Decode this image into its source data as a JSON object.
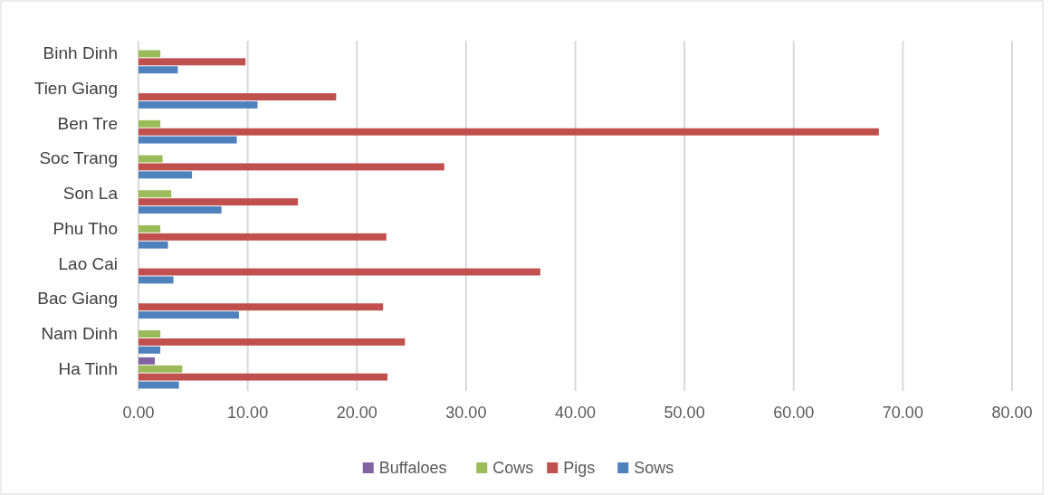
{
  "chart_data": {
    "type": "bar",
    "orientation": "horizontal",
    "categories": [
      "Binh Dinh",
      "Tien Giang",
      "Ben Tre",
      "Soc Trang",
      "Son La",
      "Phu Tho",
      "Lao Cai",
      "Bac Giang",
      "Nam Dinh",
      "Ha Tinh"
    ],
    "series": [
      {
        "name": "Buffaloes",
        "color": "#8064a2",
        "values": [
          null,
          null,
          null,
          null,
          null,
          null,
          null,
          null,
          null,
          1.5
        ]
      },
      {
        "name": "Cows",
        "color": "#9bbb59",
        "values": [
          2.0,
          null,
          2.0,
          2.2,
          3.0,
          2.0,
          null,
          null,
          2.0,
          4.0
        ]
      },
      {
        "name": "Pigs",
        "color": "#c0504d",
        "values": [
          9.8,
          18.1,
          67.8,
          28.0,
          14.6,
          22.7,
          36.8,
          22.4,
          24.4,
          22.8
        ]
      },
      {
        "name": "Sows",
        "color": "#4f81bd",
        "values": [
          3.6,
          10.9,
          9.0,
          4.9,
          7.6,
          2.7,
          3.2,
          9.2,
          2.0,
          3.7
        ]
      }
    ],
    "xlim": [
      0,
      80
    ],
    "xticks": [
      {
        "value": 0,
        "label": "0.00"
      },
      {
        "value": 10,
        "label": "10.00"
      },
      {
        "value": 20,
        "label": "20.00"
      },
      {
        "value": 30,
        "label": "30.00"
      },
      {
        "value": 40,
        "label": "40.00"
      },
      {
        "value": 50,
        "label": "50.00"
      },
      {
        "value": 60,
        "label": "60.00"
      },
      {
        "value": 70,
        "label": "70.00"
      },
      {
        "value": 80,
        "label": "80.00"
      }
    ],
    "grid": "x",
    "legend": "bottom"
  }
}
